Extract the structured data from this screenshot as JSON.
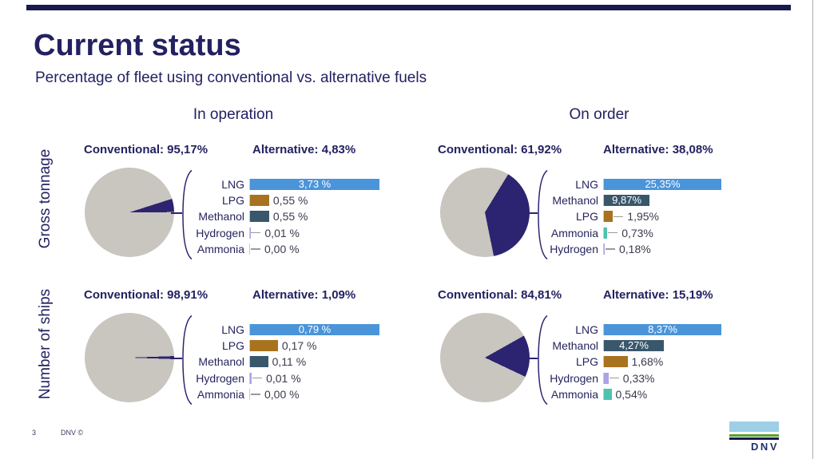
{
  "slide": {
    "title": "Current status",
    "subtitle": "Percentage of fleet using conventional vs. alternative fuels",
    "column_headers": [
      "In operation",
      "On order"
    ],
    "row_headers": [
      "Gross tonnage",
      "Number of ships"
    ],
    "page_number": "3",
    "footer_brand": "DNV ©",
    "logo_text": "DNV"
  },
  "colors": {
    "navy_text": "#232161",
    "top_bar": "#1a1a4e",
    "pie_conventional": "#c9c5bf",
    "pie_alternative": "#2c2470",
    "lng": "#4a94da",
    "methanol": "#39576b",
    "lpg": "#a9721e",
    "hydrogen": "#aaa4e6",
    "ammonia": "#4fc2ae",
    "logo_blue": "#9dd0e7",
    "logo_green": "#55a02f"
  },
  "chart_data": [
    {
      "id": "gross-tonnage-in-operation",
      "group": "Gross tonnage",
      "condition": "In operation",
      "type": "pie+bar",
      "conventional_label": "Conventional: 95,17%",
      "alternative_label": "Alternative: 4,83%",
      "conventional_pct": 95.17,
      "alternative_pct": 4.83,
      "bars": [
        {
          "fuel": "LNG",
          "value": 3.73,
          "label": "3,73 %",
          "dash": false
        },
        {
          "fuel": "LPG",
          "value": 0.55,
          "label": "0,55 %",
          "dash": false
        },
        {
          "fuel": "Methanol",
          "value": 0.55,
          "label": "0,55 %",
          "dash": false
        },
        {
          "fuel": "Hydrogen",
          "value": 0.01,
          "label": "0,01 %",
          "dash": true
        },
        {
          "fuel": "Ammonia",
          "value": 0.0,
          "label": "0,00 %",
          "dash": true
        }
      ]
    },
    {
      "id": "gross-tonnage-on-order",
      "group": "Gross tonnage",
      "condition": "On order",
      "type": "pie+bar",
      "conventional_label": "Conventional: 61,92%",
      "alternative_label": "Alternative: 38,08%",
      "conventional_pct": 61.92,
      "alternative_pct": 38.08,
      "bars": [
        {
          "fuel": "LNG",
          "value": 25.35,
          "label": "25,35%",
          "dash": false
        },
        {
          "fuel": "Methanol",
          "value": 9.87,
          "label": "9,87%",
          "dash": false
        },
        {
          "fuel": "LPG",
          "value": 1.95,
          "label": "1,95%",
          "dash": true
        },
        {
          "fuel": "Ammonia",
          "value": 0.73,
          "label": "0,73%",
          "dash": true
        },
        {
          "fuel": "Hydrogen",
          "value": 0.18,
          "label": "0,18%",
          "dash": true
        }
      ]
    },
    {
      "id": "number-of-ships-in-operation",
      "group": "Number of ships",
      "condition": "In operation",
      "type": "pie+bar",
      "conventional_label": "Conventional: 98,91%",
      "alternative_label": "Alternative: 1,09%",
      "conventional_pct": 98.91,
      "alternative_pct": 1.09,
      "bars": [
        {
          "fuel": "LNG",
          "value": 0.79,
          "label": "0,79 %",
          "dash": false
        },
        {
          "fuel": "LPG",
          "value": 0.17,
          "label": "0,17 %",
          "dash": false
        },
        {
          "fuel": "Methanol",
          "value": 0.11,
          "label": "0,11 %",
          "dash": false
        },
        {
          "fuel": "Hydrogen",
          "value": 0.01,
          "label": "0,01 %",
          "dash": true
        },
        {
          "fuel": "Ammonia",
          "value": 0.0,
          "label": "0,00 %",
          "dash": true
        }
      ]
    },
    {
      "id": "number-of-ships-on-order",
      "group": "Number of ships",
      "condition": "On order",
      "type": "pie+bar",
      "conventional_label": "Conventional: 84,81%",
      "alternative_label": "Alternative: 15,19%",
      "conventional_pct": 84.81,
      "alternative_pct": 15.19,
      "bars": [
        {
          "fuel": "LNG",
          "value": 8.37,
          "label": "8,37%",
          "dash": false
        },
        {
          "fuel": "Methanol",
          "value": 4.27,
          "label": "4,27%",
          "dash": false
        },
        {
          "fuel": "LPG",
          "value": 1.68,
          "label": "1,68%",
          "dash": false
        },
        {
          "fuel": "Hydrogen",
          "value": 0.33,
          "label": "0,33%",
          "dash": true
        },
        {
          "fuel": "Ammonia",
          "value": 0.54,
          "label": "0,54%",
          "dash": false
        }
      ]
    }
  ]
}
